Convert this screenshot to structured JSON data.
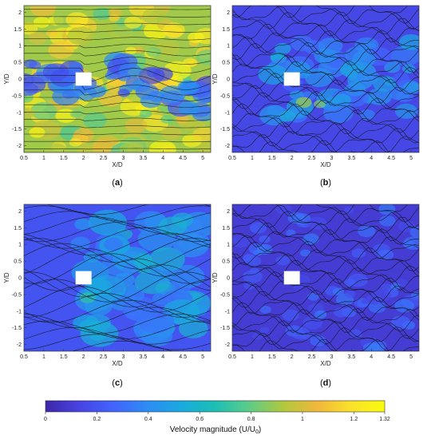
{
  "chart_data": [
    {
      "type": "heatmap",
      "panel": "a",
      "panel_label": {
        "open": "(",
        "letter": "a",
        "close": ")"
      },
      "xlabel": "X/D",
      "ylabel": "Y/D",
      "xlim": [
        0.5,
        5.2
      ],
      "ylim": [
        -2.2,
        2.2
      ],
      "xticks": [
        "0.5",
        "1",
        "1.5",
        "2",
        "2.5",
        "3",
        "3.5",
        "4",
        "4.5",
        "5"
      ],
      "yticks": [
        "2",
        "1.5",
        "1",
        "0.5",
        "0",
        "-0.5",
        "-1",
        "-1.5",
        "-2"
      ],
      "obstacle": {
        "x": [
          1.8,
          2.2
        ],
        "y": [
          -0.2,
          0.2
        ]
      },
      "field_description": "high-velocity free stream (~0.9-1.2) outside, low-velocity (~0.2-0.5) wake behind cylinder",
      "background_level": 0.9
    },
    {
      "type": "heatmap",
      "panel": "b",
      "panel_label": {
        "open": "(",
        "letter": "b",
        "close": ")"
      },
      "xlabel": "X/D",
      "ylabel": "Y/D",
      "xlim": [
        0.5,
        5.2
      ],
      "ylim": [
        -2.2,
        2.2
      ],
      "xticks": [
        "0.5",
        "1",
        "1.5",
        "2",
        "2.5",
        "3",
        "3.5",
        "4",
        "4.5",
        "5"
      ],
      "yticks": [
        "2",
        "1.5",
        "1",
        "0.5",
        "0",
        "-0.5",
        "-1",
        "-1.5",
        "-2"
      ],
      "obstacle": {
        "x": [
          1.8,
          2.2
        ],
        "y": [
          -0.2,
          0.2
        ]
      },
      "background_level": 0.15
    },
    {
      "type": "heatmap",
      "panel": "c",
      "panel_label": {
        "open": "(",
        "letter": "c",
        "close": ")"
      },
      "xlabel": "X/D",
      "ylabel": "Y/D",
      "xlim": [
        0.5,
        5.2
      ],
      "ylim": [
        -2.2,
        2.2
      ],
      "xticks": [
        "0.5",
        "1",
        "1.5",
        "2",
        "2.5",
        "3",
        "3.5",
        "4",
        "4.5",
        "5"
      ],
      "yticks": [
        "2",
        "1.5",
        "1",
        "0.5",
        "0",
        "-0.5",
        "-1",
        "-1.5",
        "-2"
      ],
      "obstacle": {
        "x": [
          1.8,
          2.2
        ],
        "y": [
          -0.2,
          0.2
        ]
      },
      "background_level": 0.2
    },
    {
      "type": "heatmap",
      "panel": "d",
      "panel_label": {
        "open": "(",
        "letter": "d",
        "close": ")"
      },
      "xlabel": "X/D",
      "ylabel": "Y/D",
      "xlim": [
        0.5,
        5.2
      ],
      "ylim": [
        -2.2,
        2.2
      ],
      "xticks": [
        "0.5",
        "1",
        "1.5",
        "2",
        "2.5",
        "3",
        "3.5",
        "4",
        "4.5",
        "5"
      ],
      "yticks": [
        "2",
        "1.5",
        "1",
        "0.5",
        "0",
        "-0.5",
        "-1",
        "-1.5",
        "-2"
      ],
      "obstacle": {
        "x": [
          1.8,
          2.2
        ],
        "y": [
          -0.2,
          0.2
        ]
      },
      "background_level": 0.1
    }
  ],
  "colorbar": {
    "label": "Velocity magnitude (U/U",
    "label_sub": "0",
    "label_close": ")",
    "ticks": [
      "0",
      "0.2",
      "0.4",
      "0.6",
      "0.8",
      "1",
      "1.2",
      "1.32"
    ],
    "tick_values": [
      0,
      0.2,
      0.4,
      0.6,
      0.8,
      1.0,
      1.2,
      1.32
    ],
    "range": [
      0,
      1.32
    ],
    "colors": [
      "#3e26a8",
      "#4743e2",
      "#4164fd",
      "#2d8cf4",
      "#19aadf",
      "#1bbfb4",
      "#5ccc88",
      "#b0c93e",
      "#f0b73c",
      "#fbe12a",
      "#f9fb0e"
    ]
  }
}
